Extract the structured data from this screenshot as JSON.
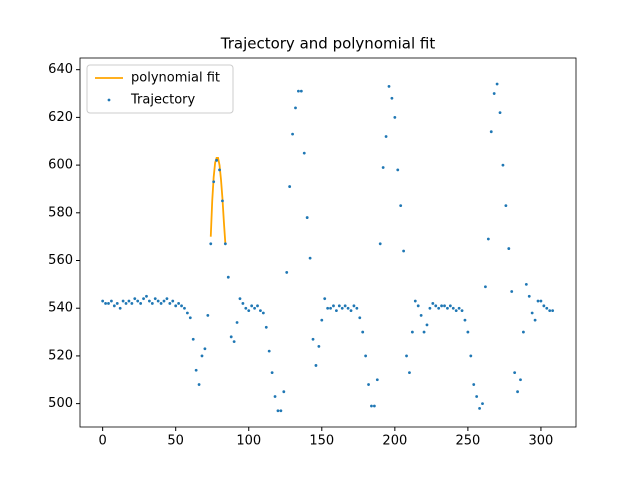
{
  "chart_data": {
    "type": "scatter",
    "title": "Trajectory and polynomial fit",
    "xlim": [
      -15.5,
      324
    ],
    "ylim": [
      490.2,
      644.9
    ],
    "xticks": [
      0,
      50,
      100,
      150,
      200,
      250,
      300
    ],
    "yticks": [
      500,
      520,
      540,
      560,
      580,
      600,
      620,
      640
    ],
    "legend": "upper left",
    "series": [
      {
        "name": "polynomial fit",
        "color": "#ffa500",
        "style": "line",
        "x": [
          74,
          75,
          76,
          77,
          78,
          79,
          80,
          81,
          82,
          83,
          84
        ],
        "values": [
          570,
          585,
          595,
          601,
          603,
          603,
          600,
          594,
          586,
          576,
          567
        ]
      },
      {
        "name": "Trajectory",
        "color": "#1f77b4",
        "style": "marker",
        "x": [
          0,
          2,
          4,
          6,
          8,
          10,
          12,
          14,
          16,
          18,
          20,
          22,
          24,
          26,
          28,
          30,
          32,
          34,
          36,
          38,
          40,
          42,
          44,
          46,
          48,
          50,
          52,
          54,
          56,
          58,
          60,
          62,
          64,
          66,
          68,
          70,
          72,
          74,
          76,
          78,
          80,
          82,
          84,
          86,
          88,
          90,
          92,
          94,
          96,
          98,
          100,
          102,
          104,
          106,
          108,
          110,
          112,
          114,
          116,
          118,
          120,
          122,
          124,
          126,
          128,
          130,
          132,
          134,
          136,
          138,
          140,
          142,
          144,
          146,
          148,
          150,
          152,
          154,
          156,
          158,
          160,
          162,
          164,
          166,
          168,
          170,
          172,
          174,
          176,
          178,
          180,
          182,
          184,
          186,
          188,
          190,
          192,
          194,
          196,
          198,
          200,
          202,
          204,
          206,
          208,
          210,
          212,
          214,
          216,
          218,
          220,
          222,
          224,
          226,
          228,
          230,
          232,
          234,
          236,
          238,
          240,
          242,
          244,
          246,
          248,
          250,
          252,
          254,
          256,
          258,
          260,
          262,
          264,
          266,
          268,
          270,
          272,
          274,
          276,
          278,
          280,
          282,
          284,
          286,
          288,
          290,
          292,
          294,
          296,
          298,
          300,
          302,
          304,
          306,
          308
        ],
        "values": [
          543,
          542,
          542,
          543,
          541,
          542,
          540,
          543,
          542,
          543,
          542,
          544,
          543,
          542,
          544,
          545,
          543,
          542,
          544,
          543,
          542,
          543,
          544,
          542,
          543,
          541,
          542,
          541,
          540,
          538,
          536,
          527,
          514,
          508,
          520,
          523,
          537,
          567,
          593,
          602,
          598,
          585,
          567,
          553,
          528,
          526,
          534,
          544,
          542,
          540,
          539,
          541,
          540,
          541,
          539,
          538,
          532,
          522,
          513,
          503,
          497,
          497,
          505,
          555,
          591,
          613,
          624,
          631,
          631,
          605,
          578,
          561,
          527,
          516,
          524,
          535,
          544,
          540,
          540,
          541,
          539,
          541,
          540,
          541,
          540,
          539,
          541,
          540,
          536,
          530,
          520,
          508,
          499,
          499,
          510,
          567,
          599,
          612,
          633,
          628,
          620,
          598,
          583,
          564,
          520,
          513,
          530,
          543,
          541,
          537,
          530,
          533,
          540,
          542,
          541,
          540,
          541,
          541,
          540,
          541,
          540,
          539,
          540,
          539,
          535,
          530,
          520,
          508,
          503,
          498,
          500,
          549,
          569,
          614,
          630,
          634,
          622,
          600,
          583,
          565,
          547,
          513,
          505,
          510,
          530,
          550,
          545,
          538,
          535,
          543,
          543,
          541,
          540,
          539,
          539
        ]
      }
    ]
  }
}
